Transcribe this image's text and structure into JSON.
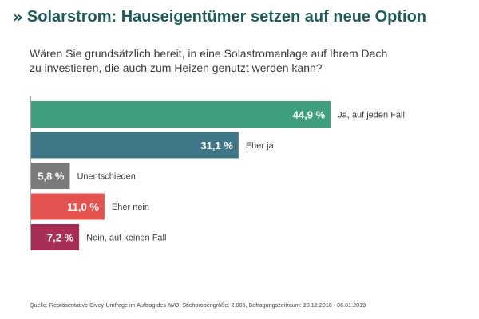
{
  "title": "Solarstrom: Hauseigentümer setzen auf neue Option",
  "title_chevron_icon": "double-chevron-right-icon",
  "subtitle_lines": [
    "Wären Sie grundsätzlich bereit, in eine Solastromanlage auf Ihrem Dach",
    "zu investieren, die auch zum Heizen genutzt werden kann?"
  ],
  "chart_data": {
    "type": "bar",
    "orientation": "horizontal",
    "categories": [
      "Ja, auf jeden Fall",
      "Eher ja",
      "Unentschieden",
      "Eher nein",
      "Nein, auf keinen Fall"
    ],
    "values": [
      44.9,
      31.1,
      5.8,
      11.0,
      7.2
    ],
    "value_labels": [
      "44,9 %",
      "31,1 %",
      "5,8 %",
      "11,0 %",
      "7,2 %"
    ],
    "colors": [
      "#3f9e7b",
      "#3f7786",
      "#7a7a7a",
      "#e4534f",
      "#a72f55"
    ],
    "unit": "%",
    "xlim": [
      0,
      45
    ]
  },
  "source": "Quelle: Repräsentative Civey-Umfrage im Auftrag des IWO, Stichprobengröße: 2.005, Befragungszeitraum: 20.12.2018 - 06.01.2019"
}
